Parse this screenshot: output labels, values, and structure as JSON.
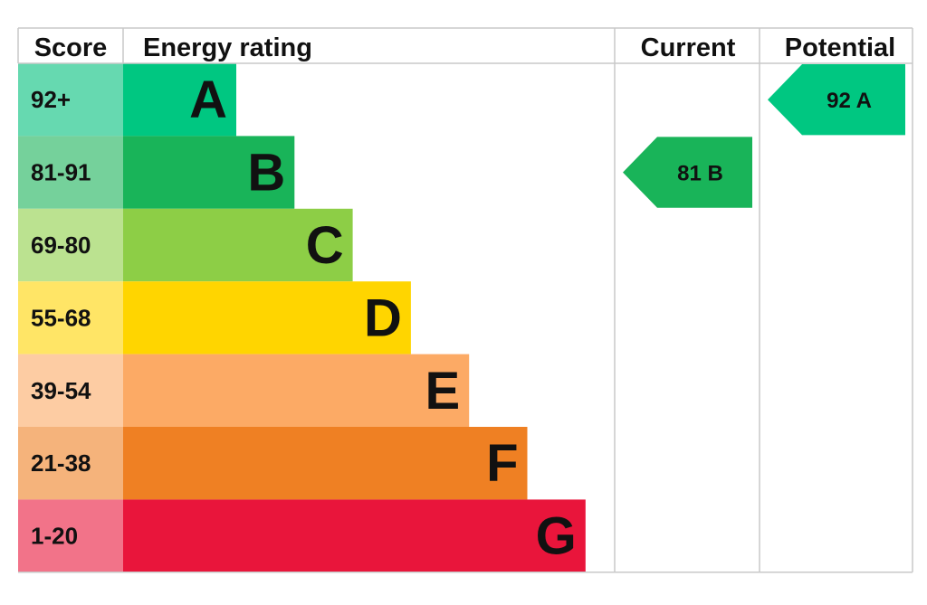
{
  "headers": {
    "score": "Score",
    "energy_rating": "Energy rating",
    "current": "Current",
    "potential": "Potential"
  },
  "chart_data": {
    "type": "bar",
    "title": "",
    "categories": [
      "A",
      "B",
      "C",
      "D",
      "E",
      "F",
      "G"
    ],
    "score_ranges": [
      "92+",
      "81-91",
      "69-80",
      "55-68",
      "39-54",
      "21-38",
      "1-20"
    ],
    "values": [
      1,
      2,
      3,
      4,
      5,
      6,
      7
    ],
    "colors": [
      "#00c781",
      "#19b459",
      "#8dce46",
      "#ffd500",
      "#fcaa65",
      "#ef8023",
      "#e9153b"
    ],
    "score_cell_colors": [
      "#66d9b0",
      "#75d19b",
      "#bbe290",
      "#ffe566",
      "#fdcca3",
      "#f5b37b",
      "#f27389"
    ],
    "current": {
      "score": "81",
      "band": "B",
      "color": "#19b459"
    },
    "potential": {
      "score": "92",
      "band": "A",
      "color": "#00c781"
    }
  }
}
